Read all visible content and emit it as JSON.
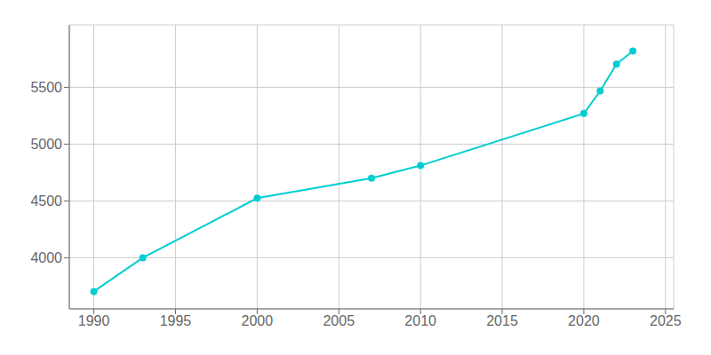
{
  "chart_data": {
    "type": "line",
    "x": [
      1990,
      1993,
      2000,
      2007,
      2010,
      2020,
      2021,
      2022,
      2023
    ],
    "values": [
      3703,
      4000,
      4524,
      4700,
      4811,
      5270,
      5468,
      5704,
      5820
    ],
    "color": "#00CED1",
    "marker": "o",
    "xlim": [
      1988.5,
      2025.5
    ],
    "ylim": [
      3550,
      6050
    ],
    "xticks": [
      1990,
      1995,
      2000,
      2005,
      2010,
      2015,
      2020,
      2025
    ],
    "yticks": [
      4000,
      4500,
      5000,
      5500
    ],
    "grid": true
  }
}
